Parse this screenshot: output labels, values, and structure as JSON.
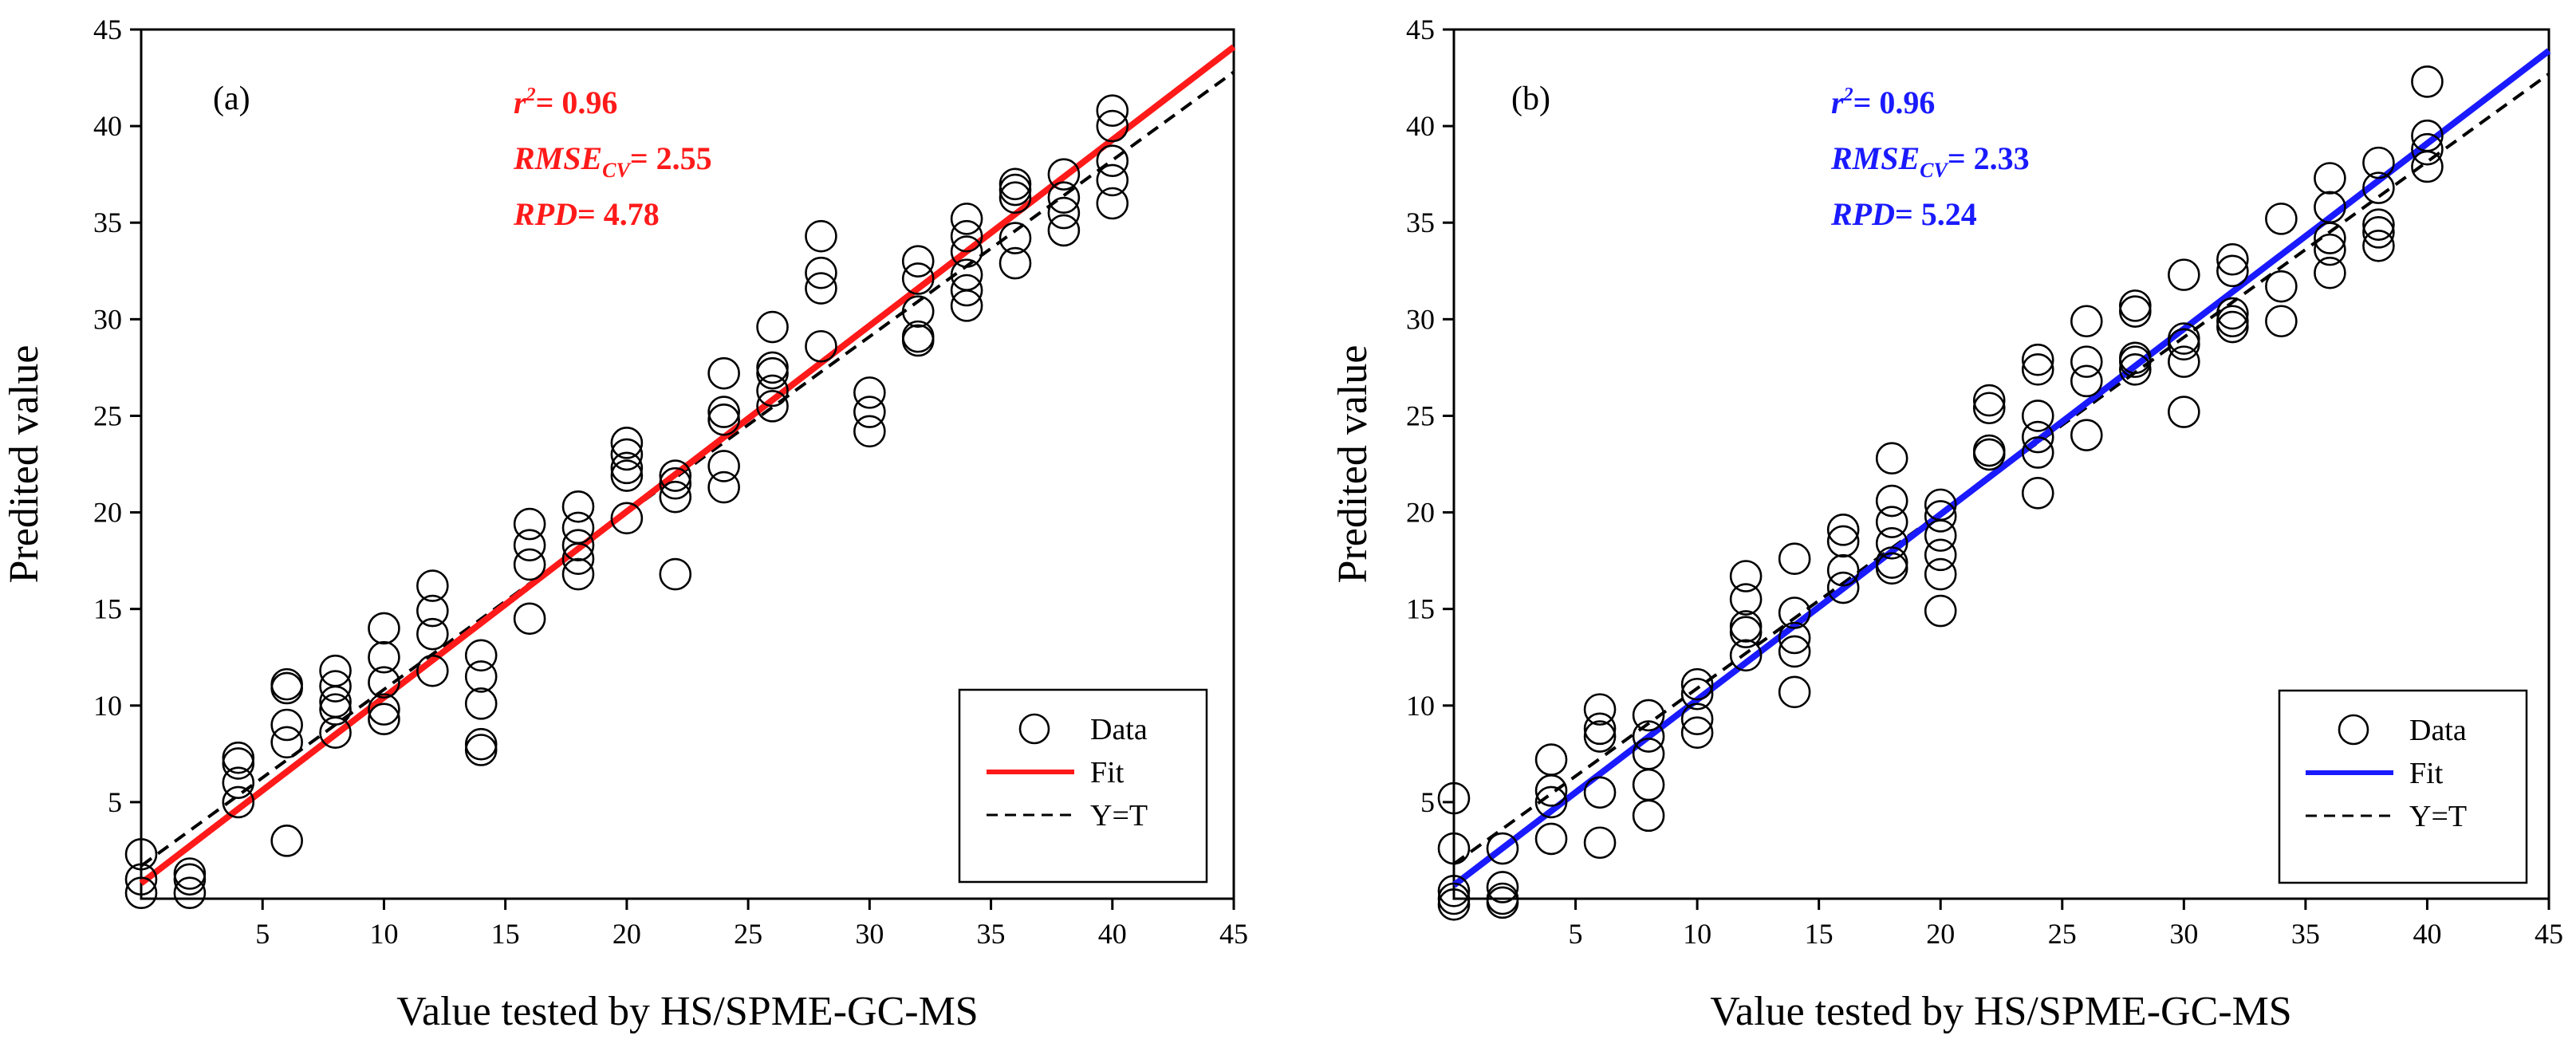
{
  "chart_data": [
    {
      "type": "scatter",
      "panel_label": "(a)",
      "xlabel": "Value tested by HS/SPME-GC-MS",
      "ylabel": "Predited value",
      "xlim": [
        0,
        45
      ],
      "ylim": [
        0,
        45
      ],
      "xticks": [
        "5",
        "10",
        "15",
        "20",
        "25",
        "30",
        "35",
        "40",
        "45"
      ],
      "yticks": [
        "5",
        "10",
        "15",
        "20",
        "25",
        "30",
        "35",
        "40",
        "45"
      ],
      "fit_color": "#ff1a1a",
      "fit_line": {
        "x": [
          0,
          45
        ],
        "y": [
          0.8,
          44.1
        ]
      },
      "identity_line": {
        "x": [
          0,
          45
        ],
        "y": [
          1.7,
          42.8
        ]
      },
      "stats": {
        "r2_prefix": "r",
        "r2_sup": "2",
        "r2_value": "= 0.96",
        "rmse_prefix": "RMSE",
        "rmse_sub": "CV",
        "rmse_value": "= 2.55",
        "rpd_prefix": "RPD",
        "rpd_value": "= 4.78"
      },
      "legend": {
        "data": "Data",
        "fit": "Fit",
        "identity": "Y=T",
        "position": "bottom-right"
      },
      "points": [
        [
          0,
          2.3
        ],
        [
          0,
          1.0
        ],
        [
          0,
          0.3
        ],
        [
          2,
          1.3
        ],
        [
          2,
          1.0
        ],
        [
          2,
          0.3
        ],
        [
          4,
          7.3
        ],
        [
          4,
          7.0
        ],
        [
          4,
          6.0
        ],
        [
          4,
          5.0
        ],
        [
          6,
          11.1
        ],
        [
          6,
          10.9
        ],
        [
          6,
          9.0
        ],
        [
          6,
          8.1
        ],
        [
          6,
          3.0
        ],
        [
          8,
          11.8
        ],
        [
          8,
          11.0
        ],
        [
          8,
          10.2
        ],
        [
          8,
          9.8
        ],
        [
          8,
          8.6
        ],
        [
          10,
          14.0
        ],
        [
          10,
          12.5
        ],
        [
          10,
          11.2
        ],
        [
          10,
          9.8
        ],
        [
          10,
          9.3
        ],
        [
          12,
          16.2
        ],
        [
          12,
          14.9
        ],
        [
          12,
          13.7
        ],
        [
          12,
          11.8
        ],
        [
          14,
          12.6
        ],
        [
          14,
          11.5
        ],
        [
          14,
          10.1
        ],
        [
          14,
          8.0
        ],
        [
          14,
          7.7
        ],
        [
          16,
          19.4
        ],
        [
          16,
          18.3
        ],
        [
          16,
          17.3
        ],
        [
          16,
          14.5
        ],
        [
          18,
          20.3
        ],
        [
          18,
          19.2
        ],
        [
          18,
          18.3
        ],
        [
          18,
          17.6
        ],
        [
          18,
          16.8
        ],
        [
          20,
          23.6
        ],
        [
          20,
          23.0
        ],
        [
          20,
          22.3
        ],
        [
          20,
          21.9
        ],
        [
          20,
          19.7
        ],
        [
          22,
          21.9
        ],
        [
          22,
          21.5
        ],
        [
          22,
          20.8
        ],
        [
          22,
          16.8
        ],
        [
          24,
          27.2
        ],
        [
          24,
          25.2
        ],
        [
          24,
          24.8
        ],
        [
          24,
          22.4
        ],
        [
          24,
          21.3
        ],
        [
          26,
          29.6
        ],
        [
          26,
          27.5
        ],
        [
          26,
          27.2
        ],
        [
          26,
          26.3
        ],
        [
          26,
          25.5
        ],
        [
          28,
          34.3
        ],
        [
          28,
          32.4
        ],
        [
          28,
          31.6
        ],
        [
          28,
          28.6
        ],
        [
          30,
          26.2
        ],
        [
          30,
          25.2
        ],
        [
          30,
          24.2
        ],
        [
          32,
          33.0
        ],
        [
          32,
          32.1
        ],
        [
          32,
          30.4
        ],
        [
          32,
          29.1
        ],
        [
          32,
          28.9
        ],
        [
          34,
          35.2
        ],
        [
          34,
          34.3
        ],
        [
          34,
          33.5
        ],
        [
          34,
          32.3
        ],
        [
          34,
          31.5
        ],
        [
          34,
          30.7
        ],
        [
          36,
          37.0
        ],
        [
          36,
          36.7
        ],
        [
          36,
          36.3
        ],
        [
          36,
          34.2
        ],
        [
          36,
          32.9
        ],
        [
          38,
          37.5
        ],
        [
          38,
          36.3
        ],
        [
          38,
          35.5
        ],
        [
          38,
          34.6
        ],
        [
          40,
          40.8
        ],
        [
          40,
          40.0
        ],
        [
          40,
          38.2
        ],
        [
          40,
          37.2
        ],
        [
          40,
          36.0
        ]
      ]
    },
    {
      "type": "scatter",
      "panel_label": "(b)",
      "xlabel": "Value tested by HS/SPME-GC-MS",
      "ylabel": "Predited value",
      "xlim": [
        0,
        45
      ],
      "ylim": [
        0,
        45
      ],
      "xticks": [
        "5",
        "10",
        "15",
        "20",
        "25",
        "30",
        "35",
        "40",
        "45"
      ],
      "yticks": [
        "5",
        "10",
        "15",
        "20",
        "25",
        "30",
        "35",
        "40",
        "45"
      ],
      "fit_color": "#1a1aff",
      "fit_line": {
        "x": [
          0,
          45
        ],
        "y": [
          0.7,
          43.9
        ]
      },
      "identity_line": {
        "x": [
          0,
          45
        ],
        "y": [
          1.8,
          42.7
        ]
      },
      "stats": {
        "r2_prefix": "r",
        "r2_sup": "2",
        "r2_value": "= 0.96",
        "rmse_prefix": "RMSE",
        "rmse_sub": "CV",
        "rmse_value": "= 2.33",
        "rpd_prefix": "RPD",
        "rpd_value": "= 5.24"
      },
      "legend": {
        "data": "Data",
        "fit": "Fit",
        "identity": "Y=T",
        "position": "bottom-right"
      },
      "points": [
        [
          0,
          5.2
        ],
        [
          0,
          2.6
        ],
        [
          0,
          0.4
        ],
        [
          0,
          0.0
        ],
        [
          0,
          -0.3
        ],
        [
          2,
          2.6
        ],
        [
          2,
          0.6
        ],
        [
          2,
          0.0
        ],
        [
          2,
          -0.2
        ],
        [
          4,
          7.2
        ],
        [
          4,
          5.6
        ],
        [
          4,
          5.0
        ],
        [
          4,
          3.1
        ],
        [
          6,
          9.8
        ],
        [
          6,
          8.8
        ],
        [
          6,
          8.4
        ],
        [
          6,
          5.5
        ],
        [
          6,
          2.9
        ],
        [
          8,
          9.5
        ],
        [
          8,
          8.4
        ],
        [
          8,
          7.5
        ],
        [
          8,
          5.9
        ],
        [
          8,
          4.3
        ],
        [
          10,
          11.1
        ],
        [
          10,
          10.6
        ],
        [
          10,
          9.3
        ],
        [
          10,
          8.6
        ],
        [
          12,
          16.7
        ],
        [
          12,
          15.5
        ],
        [
          12,
          14.1
        ],
        [
          12,
          13.8
        ],
        [
          12,
          12.6
        ],
        [
          14,
          17.6
        ],
        [
          14,
          14.8
        ],
        [
          14,
          13.5
        ],
        [
          14,
          12.8
        ],
        [
          14,
          10.7
        ],
        [
          16,
          19.1
        ],
        [
          16,
          18.5
        ],
        [
          16,
          17.0
        ],
        [
          16,
          16.1
        ],
        [
          18,
          22.8
        ],
        [
          18,
          20.6
        ],
        [
          18,
          19.5
        ],
        [
          18,
          18.4
        ],
        [
          18,
          17.4
        ],
        [
          18,
          17.1
        ],
        [
          20,
          20.4
        ],
        [
          20,
          19.8
        ],
        [
          20,
          18.8
        ],
        [
          20,
          17.8
        ],
        [
          20,
          16.8
        ],
        [
          20,
          14.9
        ],
        [
          22,
          25.8
        ],
        [
          22,
          25.4
        ],
        [
          22,
          23.2
        ],
        [
          22,
          23.0
        ],
        [
          24,
          27.9
        ],
        [
          24,
          27.4
        ],
        [
          24,
          25.0
        ],
        [
          24,
          23.9
        ],
        [
          24,
          23.1
        ],
        [
          24,
          21.0
        ],
        [
          26,
          29.9
        ],
        [
          26,
          27.8
        ],
        [
          26,
          26.8
        ],
        [
          26,
          24.0
        ],
        [
          28,
          30.7
        ],
        [
          28,
          30.4
        ],
        [
          28,
          28.0
        ],
        [
          28,
          27.8
        ],
        [
          28,
          27.4
        ],
        [
          30,
          32.3
        ],
        [
          30,
          29.0
        ],
        [
          30,
          28.7
        ],
        [
          30,
          27.8
        ],
        [
          30,
          25.2
        ],
        [
          32,
          33.1
        ],
        [
          32,
          32.5
        ],
        [
          32,
          30.3
        ],
        [
          32,
          29.9
        ],
        [
          32,
          29.6
        ],
        [
          34,
          35.2
        ],
        [
          34,
          31.7
        ],
        [
          34,
          29.9
        ],
        [
          36,
          37.3
        ],
        [
          36,
          35.8
        ],
        [
          36,
          34.2
        ],
        [
          36,
          33.6
        ],
        [
          36,
          32.4
        ],
        [
          38,
          38.1
        ],
        [
          38,
          36.8
        ],
        [
          38,
          34.9
        ],
        [
          38,
          34.5
        ],
        [
          38,
          33.8
        ],
        [
          40,
          42.3
        ],
        [
          40,
          39.5
        ],
        [
          40,
          38.8
        ],
        [
          40,
          37.9
        ]
      ]
    }
  ]
}
